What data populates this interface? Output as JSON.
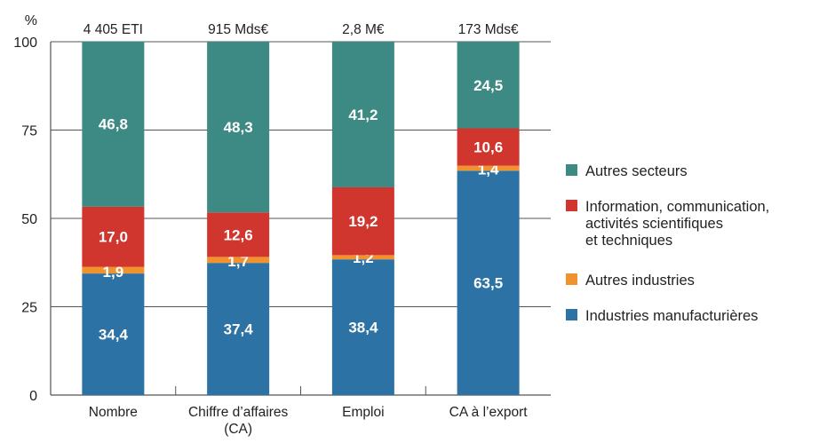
{
  "chart_data": {
    "type": "bar",
    "stacked": true,
    "ylabel": "%",
    "ylim": [
      0,
      100
    ],
    "yticks": [
      0,
      25,
      50,
      75,
      100
    ],
    "grid": true,
    "legend_position": "right",
    "categories": [
      {
        "label": [
          "Nombre"
        ],
        "total": "4 405 ETI"
      },
      {
        "label": [
          "Chiffre d’affaires",
          "(CA)"
        ],
        "total": "915 Mds€"
      },
      {
        "label": [
          "Emploi"
        ],
        "total": "2,8 M€"
      },
      {
        "label": [
          "CA à l’export"
        ],
        "total": "173 Mds€"
      }
    ],
    "series": [
      {
        "name": [
          "Industries manufacturières"
        ],
        "color": "#2c72a4",
        "values": [
          34.4,
          37.4,
          38.4,
          63.5
        ],
        "labels": [
          "34,4",
          "37,4",
          "38,4",
          "63,5"
        ]
      },
      {
        "name": [
          "Autres industries"
        ],
        "color": "#f0922e",
        "values": [
          1.9,
          1.7,
          1.2,
          1.4
        ],
        "labels": [
          "1,9",
          "1,7",
          "1,2",
          "1,4"
        ]
      },
      {
        "name": [
          "Information, communication,",
          "activités scientifiques",
          "et techniques"
        ],
        "color": "#d0352e",
        "values": [
          17.0,
          12.6,
          19.2,
          10.6
        ],
        "labels": [
          "17,0",
          "12,6",
          "19,2",
          "10,6"
        ]
      },
      {
        "name": [
          "Autres secteurs"
        ],
        "color": "#3d8a84",
        "values": [
          46.8,
          48.3,
          41.2,
          24.5
        ],
        "labels": [
          "46,8",
          "48,3",
          "41,2",
          "24,5"
        ]
      }
    ]
  }
}
